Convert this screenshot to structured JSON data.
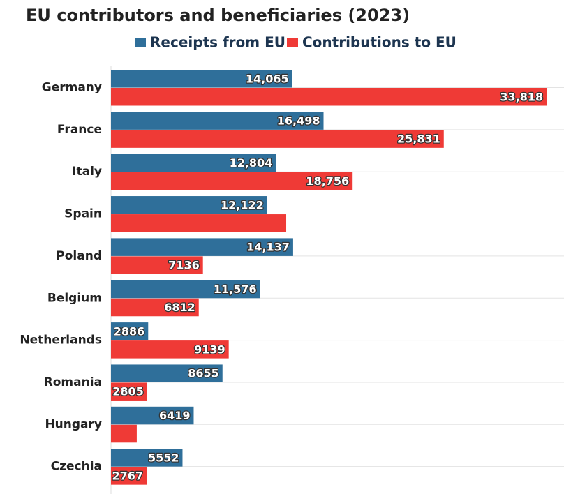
{
  "chart_data": {
    "type": "bar",
    "orientation": "horizontal",
    "title": "EU contributors and beneficiaries (2023)",
    "categories": [
      "Germany",
      "France",
      "Italy",
      "Spain",
      "Poland",
      "Belgium",
      "Netherlands",
      "Romania",
      "Hungary",
      "Czechia"
    ],
    "series": [
      {
        "name": "Receipts from EU",
        "color": "#2f6f9a",
        "values": [
          14065,
          16498,
          12804,
          12122,
          14137,
          11576,
          2886,
          8655,
          6419,
          5552
        ],
        "value_labels": [
          "14,065",
          "16,498",
          "12,804",
          "12,122",
          "14,137",
          "11,576",
          "2886",
          "8655",
          "6419",
          "5552"
        ]
      },
      {
        "name": "Contributions to EU",
        "color": "#ef3a36",
        "values": [
          33818,
          25831,
          18756,
          13600,
          7136,
          6812,
          9139,
          2805,
          2000,
          2767
        ],
        "value_labels": [
          "33,818",
          "25,831",
          "18,756",
          null,
          "7136",
          "6812",
          "9139",
          "2805",
          null,
          "2767"
        ]
      }
    ],
    "xlim": [
      0,
      35000
    ],
    "legend": "top"
  }
}
